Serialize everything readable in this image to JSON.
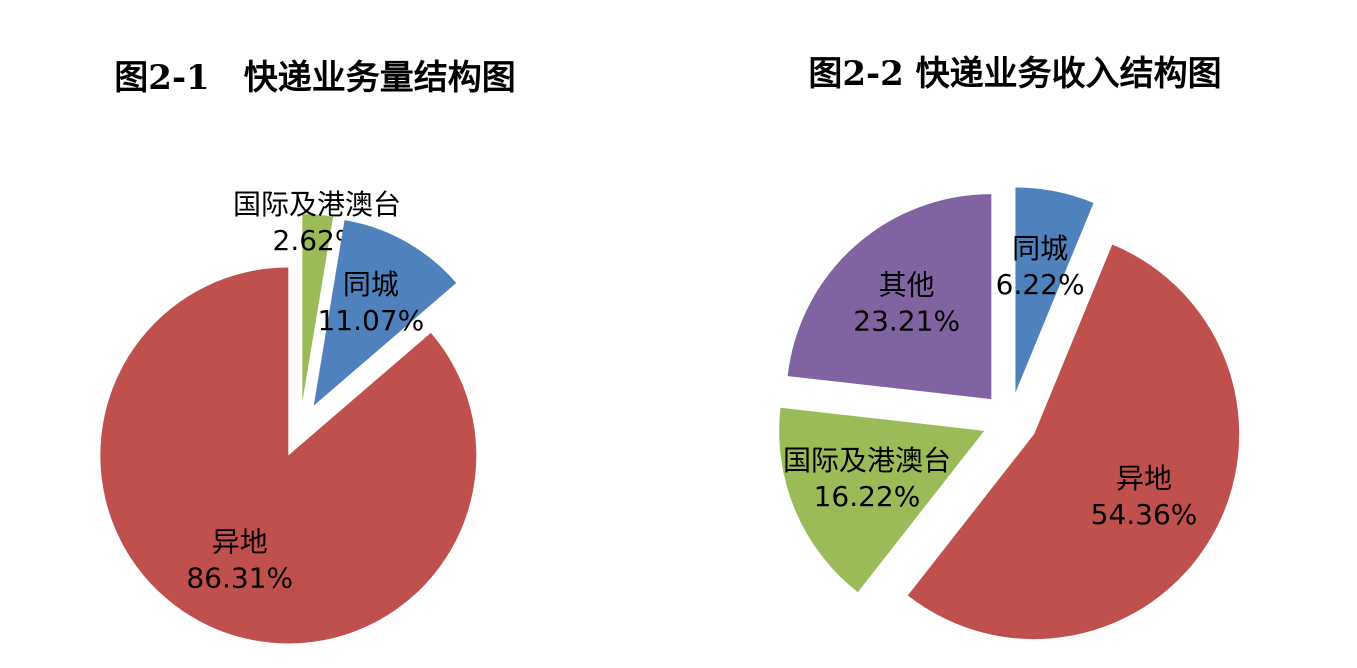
{
  "chart_data": [
    {
      "type": "pie",
      "title": "图2-1　快递业务量结构图",
      "categories": [
        "国际及港澳台",
        "同城",
        "异地"
      ],
      "values": [
        2.62,
        11.07,
        86.31
      ],
      "value_labels": [
        "2.62%",
        "11.07%",
        "86.31%"
      ],
      "colors": [
        "#9bbb59",
        "#4f81bd",
        "#c0504d"
      ]
    },
    {
      "type": "pie",
      "title": "图2-2 快递业务收入结构图",
      "categories": [
        "同城",
        "异地",
        "国际及港澳台",
        "其他"
      ],
      "values": [
        6.22,
        54.36,
        16.22,
        23.21
      ],
      "value_labels": [
        "6.22%",
        "54.36%",
        "16.22%",
        "23.21%"
      ],
      "colors": [
        "#4f81bd",
        "#c0504d",
        "#9bbb59",
        "#8064a2"
      ]
    }
  ]
}
